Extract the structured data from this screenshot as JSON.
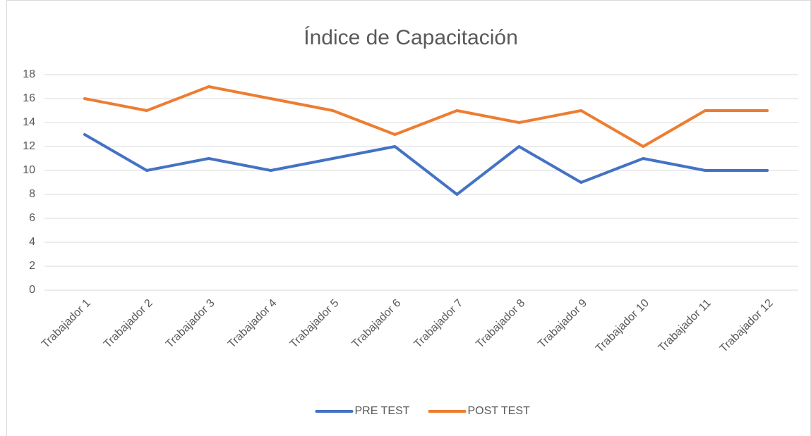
{
  "chart_data": {
    "type": "line",
    "title": "Índice de Capacitación",
    "categories": [
      "Trabajador 1",
      "Trabajador 2",
      "Trabajador 3",
      "Trabajador 4",
      "Trabajador 5",
      "Trabajador 6",
      "Trabajador 7",
      "Trabajador 8",
      "Trabajador 9",
      "Trabajador 10",
      "Trabajador 11",
      "Trabajador 12"
    ],
    "series": [
      {
        "name": "PRE TEST",
        "color": "#4472c4",
        "values": [
          13,
          10,
          11,
          10,
          11,
          12,
          8,
          12,
          9,
          11,
          10,
          10
        ]
      },
      {
        "name": "POST TEST",
        "color": "#ed7d31",
        "values": [
          16,
          15,
          17,
          16,
          15,
          13,
          15,
          14,
          15,
          12,
          15,
          15
        ]
      }
    ],
    "ylim": [
      0,
      18
    ],
    "yticks": [
      0,
      2,
      4,
      6,
      8,
      10,
      12,
      14,
      16,
      18
    ],
    "grid": true,
    "legend": "bottom"
  }
}
